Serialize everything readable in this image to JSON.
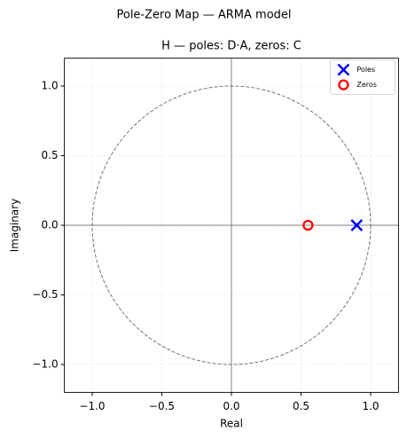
{
  "chart_data": {
    "type": "scatter",
    "suptitle": "Pole-Zero Map  —  ARMA model",
    "title": "H  —  poles: D·A,  zeros: C",
    "x_label": "Real",
    "y_label": "Imaginary",
    "xlim": [
      -1.2,
      1.2
    ],
    "ylim": [
      -1.2,
      1.2
    ],
    "xticks": [
      {
        "value": -1,
        "label": "−1.0"
      },
      {
        "value": -0.5,
        "label": "−0.5"
      },
      {
        "value": 0,
        "label": "0.0"
      },
      0.5,
      {
        "value": 1,
        "label": "1.0"
      }
    ],
    "yticks": [
      {
        "value": -1,
        "label": "−1.0"
      },
      {
        "value": -0.5,
        "label": "−0.5"
      },
      {
        "value": 0,
        "label": "0.0"
      },
      0.5,
      {
        "value": 1,
        "label": "1.0"
      }
    ],
    "grid": true,
    "unit_circle": true,
    "legend": "upper right",
    "series": [
      {
        "name": "Poles",
        "color": "#0000ff",
        "marker": "x",
        "x": [
          0.9
        ],
        "values": [
          0
        ]
      },
      {
        "name": "Zeros",
        "color": "#ff0000",
        "marker": "o",
        "x": [
          0.55
        ],
        "values": [
          0
        ]
      }
    ]
  }
}
